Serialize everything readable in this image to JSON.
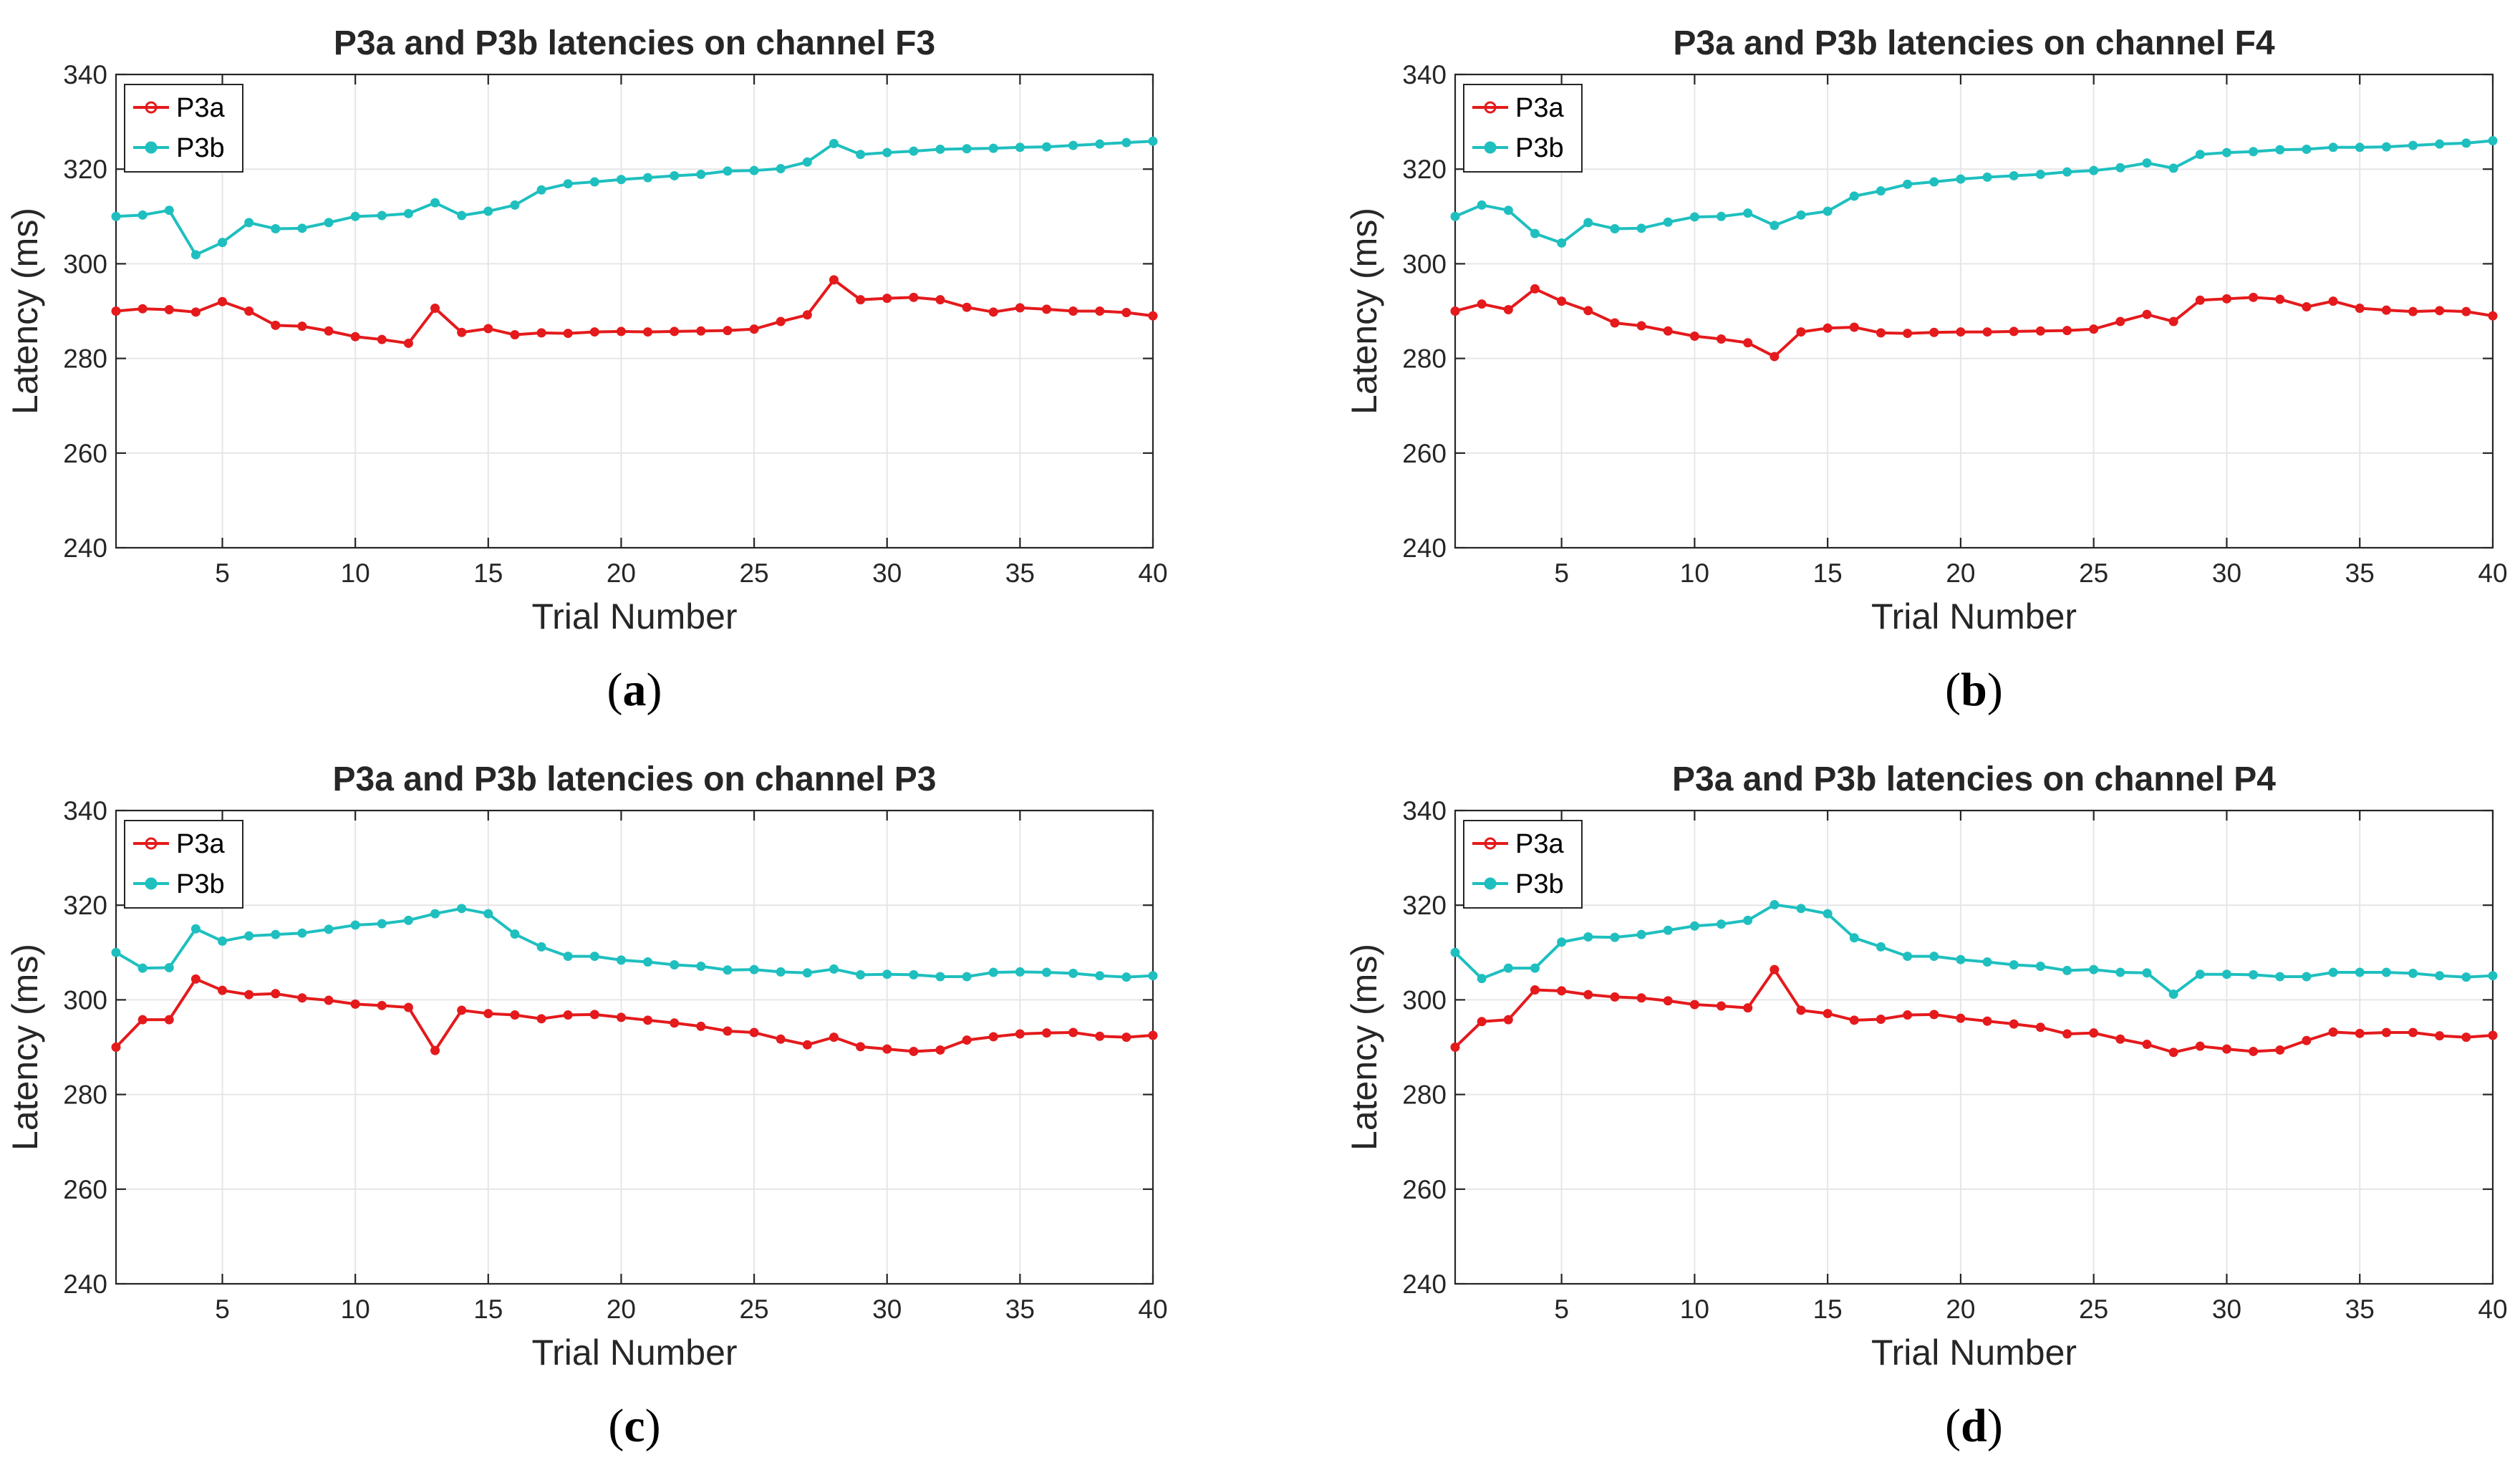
{
  "colors": {
    "p3a": "#e41a1c",
    "p3b": "#1fbfbf",
    "axis": "#262626",
    "grid": "#e6e6e6"
  },
  "chart_data": [
    {
      "type": "line",
      "caption": "a",
      "title": "P3a and P3b latencies on channel F3",
      "xlabel": "Trial Number",
      "ylabel": "Latency (ms)",
      "xlim": [
        1,
        40
      ],
      "ylim": [
        240,
        340
      ],
      "xticks": [
        5,
        10,
        15,
        20,
        25,
        30,
        35,
        40
      ],
      "yticks": [
        240,
        260,
        280,
        300,
        320,
        340
      ],
      "grid": true,
      "legend": "top-left",
      "series": [
        {
          "name": "P3a",
          "values": [
            290,
            290.5,
            290.3,
            289.8,
            292,
            290,
            287,
            286.8,
            285.8,
            284.6,
            284,
            283.2,
            290.6,
            285.5,
            286.3,
            285,
            285.4,
            285.3,
            285.6,
            285.7,
            285.6,
            285.7,
            285.8,
            285.9,
            286.2,
            287.8,
            289.2,
            296.6,
            292.4,
            292.7,
            292.9,
            292.4,
            290.8,
            289.8,
            290.7,
            290.4,
            290,
            290,
            289.7,
            289
          ]
        },
        {
          "name": "P3b",
          "values": [
            310,
            310.3,
            311.3,
            301.9,
            304.5,
            308.7,
            307.4,
            307.5,
            308.7,
            310,
            310.2,
            310.6,
            312.9,
            310.2,
            311.1,
            312.4,
            315.6,
            316.9,
            317.3,
            317.8,
            318.2,
            318.6,
            318.9,
            319.6,
            319.7,
            320.1,
            321.5,
            325.4,
            323.1,
            323.5,
            323.8,
            324.2,
            324.3,
            324.4,
            324.6,
            324.7,
            325,
            325.3,
            325.6,
            325.9
          ]
        }
      ]
    },
    {
      "type": "line",
      "caption": "b",
      "title": "P3a and P3b latencies on channel F4",
      "xlabel": "Trial Number",
      "ylabel": "Latency (ms)",
      "xlim": [
        1,
        40
      ],
      "ylim": [
        240,
        340
      ],
      "xticks": [
        5,
        10,
        15,
        20,
        25,
        30,
        35,
        40
      ],
      "yticks": [
        240,
        260,
        280,
        300,
        320,
        340
      ],
      "grid": true,
      "legend": "top-left",
      "series": [
        {
          "name": "P3a",
          "values": [
            290,
            291.5,
            290.3,
            294.7,
            292.1,
            290.1,
            287.5,
            286.9,
            285.8,
            284.7,
            284.1,
            283.3,
            280.4,
            285.6,
            286.4,
            286.6,
            285.4,
            285.3,
            285.5,
            285.6,
            285.6,
            285.7,
            285.8,
            285.9,
            286.2,
            287.8,
            289.3,
            287.8,
            292.3,
            292.6,
            292.9,
            292.5,
            290.9,
            292.1,
            290.6,
            290.2,
            289.9,
            290.1,
            289.9,
            289
          ]
        },
        {
          "name": "P3b",
          "values": [
            310,
            312.4,
            311.3,
            306.4,
            304.4,
            308.7,
            307.4,
            307.5,
            308.8,
            309.9,
            310,
            310.7,
            308.1,
            310.3,
            311.1,
            314.3,
            315.4,
            316.8,
            317.3,
            317.9,
            318.3,
            318.6,
            318.9,
            319.4,
            319.7,
            320.3,
            321.3,
            320.2,
            323.1,
            323.5,
            323.7,
            324.1,
            324.2,
            324.6,
            324.6,
            324.7,
            325,
            325.3,
            325.5,
            326
          ]
        }
      ]
    },
    {
      "type": "line",
      "caption": "c",
      "title": "P3a and P3b latencies on channel P3",
      "xlabel": "Trial Number",
      "ylabel": "Latency (ms)",
      "xlim": [
        1,
        40
      ],
      "ylim": [
        240,
        340
      ],
      "xticks": [
        5,
        10,
        15,
        20,
        25,
        30,
        35,
        40
      ],
      "yticks": [
        240,
        260,
        280,
        300,
        320,
        340
      ],
      "grid": true,
      "legend": "top-left",
      "series": [
        {
          "name": "P3a",
          "values": [
            290,
            295.8,
            295.8,
            304.4,
            302,
            301.1,
            301.3,
            300.4,
            299.9,
            299.1,
            298.8,
            298.4,
            289.3,
            297.8,
            297.1,
            296.8,
            296,
            296.8,
            296.9,
            296.3,
            295.7,
            295.1,
            294.4,
            293.4,
            293.1,
            291.7,
            290.5,
            292.1,
            290.1,
            289.6,
            289.1,
            289.4,
            291.5,
            292.2,
            292.8,
            293,
            293.1,
            292.3,
            292.1,
            292.5
          ]
        },
        {
          "name": "P3b",
          "values": [
            310,
            306.7,
            306.8,
            315,
            312.4,
            313.5,
            313.8,
            314.1,
            314.9,
            315.8,
            316.1,
            316.8,
            318.2,
            319.3,
            318.2,
            313.9,
            311.2,
            309.2,
            309.2,
            308.4,
            308,
            307.4,
            307.1,
            306.3,
            306.4,
            305.9,
            305.7,
            306.5,
            305.3,
            305.4,
            305.3,
            304.9,
            304.9,
            305.8,
            305.9,
            305.8,
            305.6,
            305.1,
            304.8,
            305.1
          ]
        }
      ]
    },
    {
      "type": "line",
      "caption": "d",
      "title": "P3a and P3b latencies on channel P4",
      "xlabel": "Trial Number",
      "ylabel": "Latency (ms)",
      "xlim": [
        1,
        40
      ],
      "ylim": [
        240,
        340
      ],
      "xticks": [
        5,
        10,
        15,
        20,
        25,
        30,
        35,
        40
      ],
      "yticks": [
        240,
        260,
        280,
        300,
        320,
        340
      ],
      "grid": true,
      "legend": "top-left",
      "series": [
        {
          "name": "P3a",
          "values": [
            290,
            295.4,
            295.8,
            302.1,
            301.9,
            301.1,
            300.6,
            300.4,
            299.8,
            299,
            298.7,
            298.3,
            306.4,
            297.8,
            297.1,
            295.7,
            295.9,
            296.8,
            296.9,
            296.1,
            295.5,
            294.9,
            294.2,
            292.8,
            293,
            291.7,
            290.6,
            288.9,
            290.2,
            289.6,
            289.1,
            289.4,
            291.4,
            293.2,
            292.9,
            293.1,
            293.1,
            292.4,
            292.1,
            292.5
          ]
        },
        {
          "name": "P3b",
          "values": [
            310,
            304.5,
            306.7,
            306.7,
            312.2,
            313.3,
            313.2,
            313.8,
            314.7,
            315.6,
            316,
            316.8,
            320.1,
            319.3,
            318.2,
            313.1,
            311.2,
            309.2,
            309.2,
            308.5,
            308,
            307.4,
            307.1,
            306.2,
            306.4,
            305.8,
            305.7,
            301.2,
            305.4,
            305.4,
            305.3,
            304.9,
            304.9,
            305.8,
            305.8,
            305.8,
            305.6,
            305.1,
            304.8,
            305.1
          ]
        }
      ]
    }
  ]
}
